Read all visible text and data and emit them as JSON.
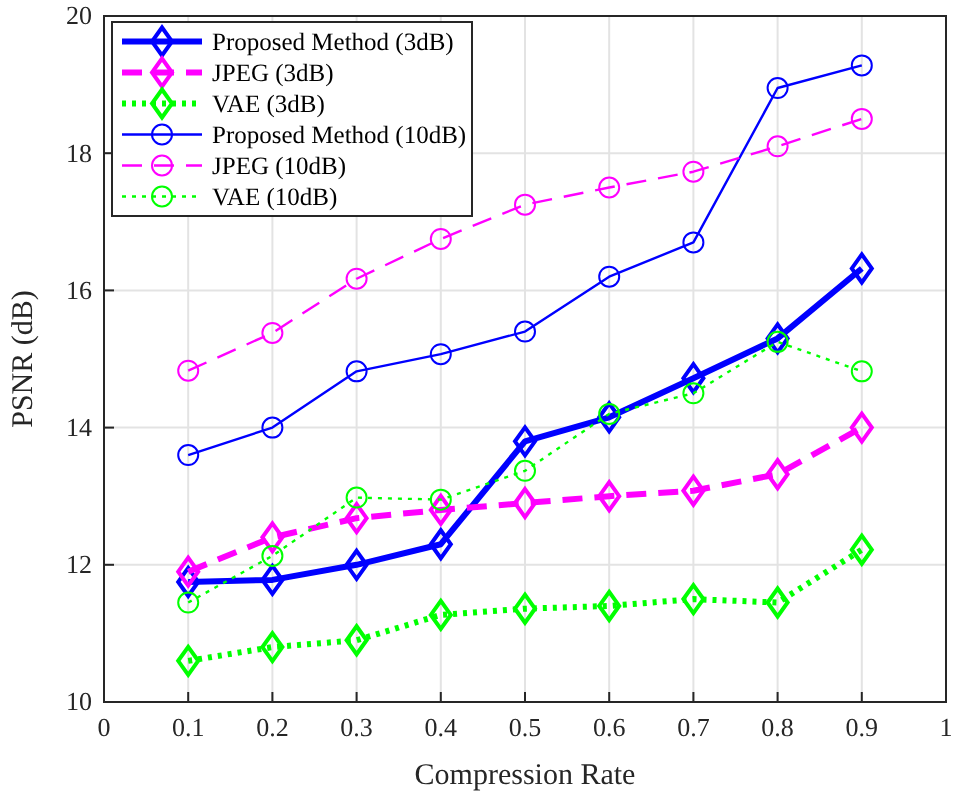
{
  "chart_data": {
    "type": "line",
    "xlabel": "Compression Rate",
    "ylabel": "PSNR (dB)",
    "x": [
      0.1,
      0.2,
      0.3,
      0.4,
      0.5,
      0.6,
      0.7,
      0.8,
      0.9
    ],
    "xlim": [
      0,
      1
    ],
    "xticks": [
      0,
      0.1,
      0.2,
      0.3,
      0.4,
      0.5,
      0.6,
      0.7,
      0.8,
      0.9,
      1
    ],
    "ylim": [
      10,
      20
    ],
    "yticks": [
      10,
      12,
      14,
      16,
      18,
      20
    ],
    "grid": true,
    "legend": "top left",
    "series": [
      {
        "name": "Proposed Method (3dB)",
        "color": "#0000ff",
        "marker": "diamond",
        "line_style": "solid",
        "values": [
          11.75,
          11.78,
          12.0,
          12.3,
          13.8,
          14.15,
          14.72,
          15.3,
          16.32
        ]
      },
      {
        "name": "JPEG (3dB)",
        "color": "#ff00ff",
        "marker": "diamond",
        "line_style": "dashed",
        "values": [
          11.9,
          12.4,
          12.68,
          12.8,
          12.9,
          13.0,
          13.08,
          13.32,
          14.0
        ]
      },
      {
        "name": "VAE (3dB)",
        "color": "#00ff00",
        "marker": "diamond",
        "line_style": "dotted",
        "values": [
          10.6,
          10.8,
          10.9,
          11.27,
          11.36,
          11.4,
          11.5,
          11.45,
          12.22
        ]
      },
      {
        "name": "Proposed Method (10dB)",
        "color": "#0000ff",
        "marker": "circle",
        "line_style": "solid",
        "values": [
          13.6,
          14.0,
          14.82,
          15.07,
          15.4,
          16.2,
          16.7,
          18.95,
          19.28
        ]
      },
      {
        "name": "JPEG (10dB)",
        "color": "#ff00ff",
        "marker": "circle",
        "line_style": "dashed",
        "values": [
          14.83,
          15.38,
          16.17,
          16.75,
          17.25,
          17.5,
          17.73,
          18.1,
          18.5
        ]
      },
      {
        "name": "VAE (10dB)",
        "color": "#00ff00",
        "marker": "circle",
        "line_style": "dotted",
        "values": [
          11.45,
          12.13,
          12.98,
          12.95,
          13.37,
          14.2,
          14.5,
          15.25,
          14.82
        ]
      }
    ]
  }
}
